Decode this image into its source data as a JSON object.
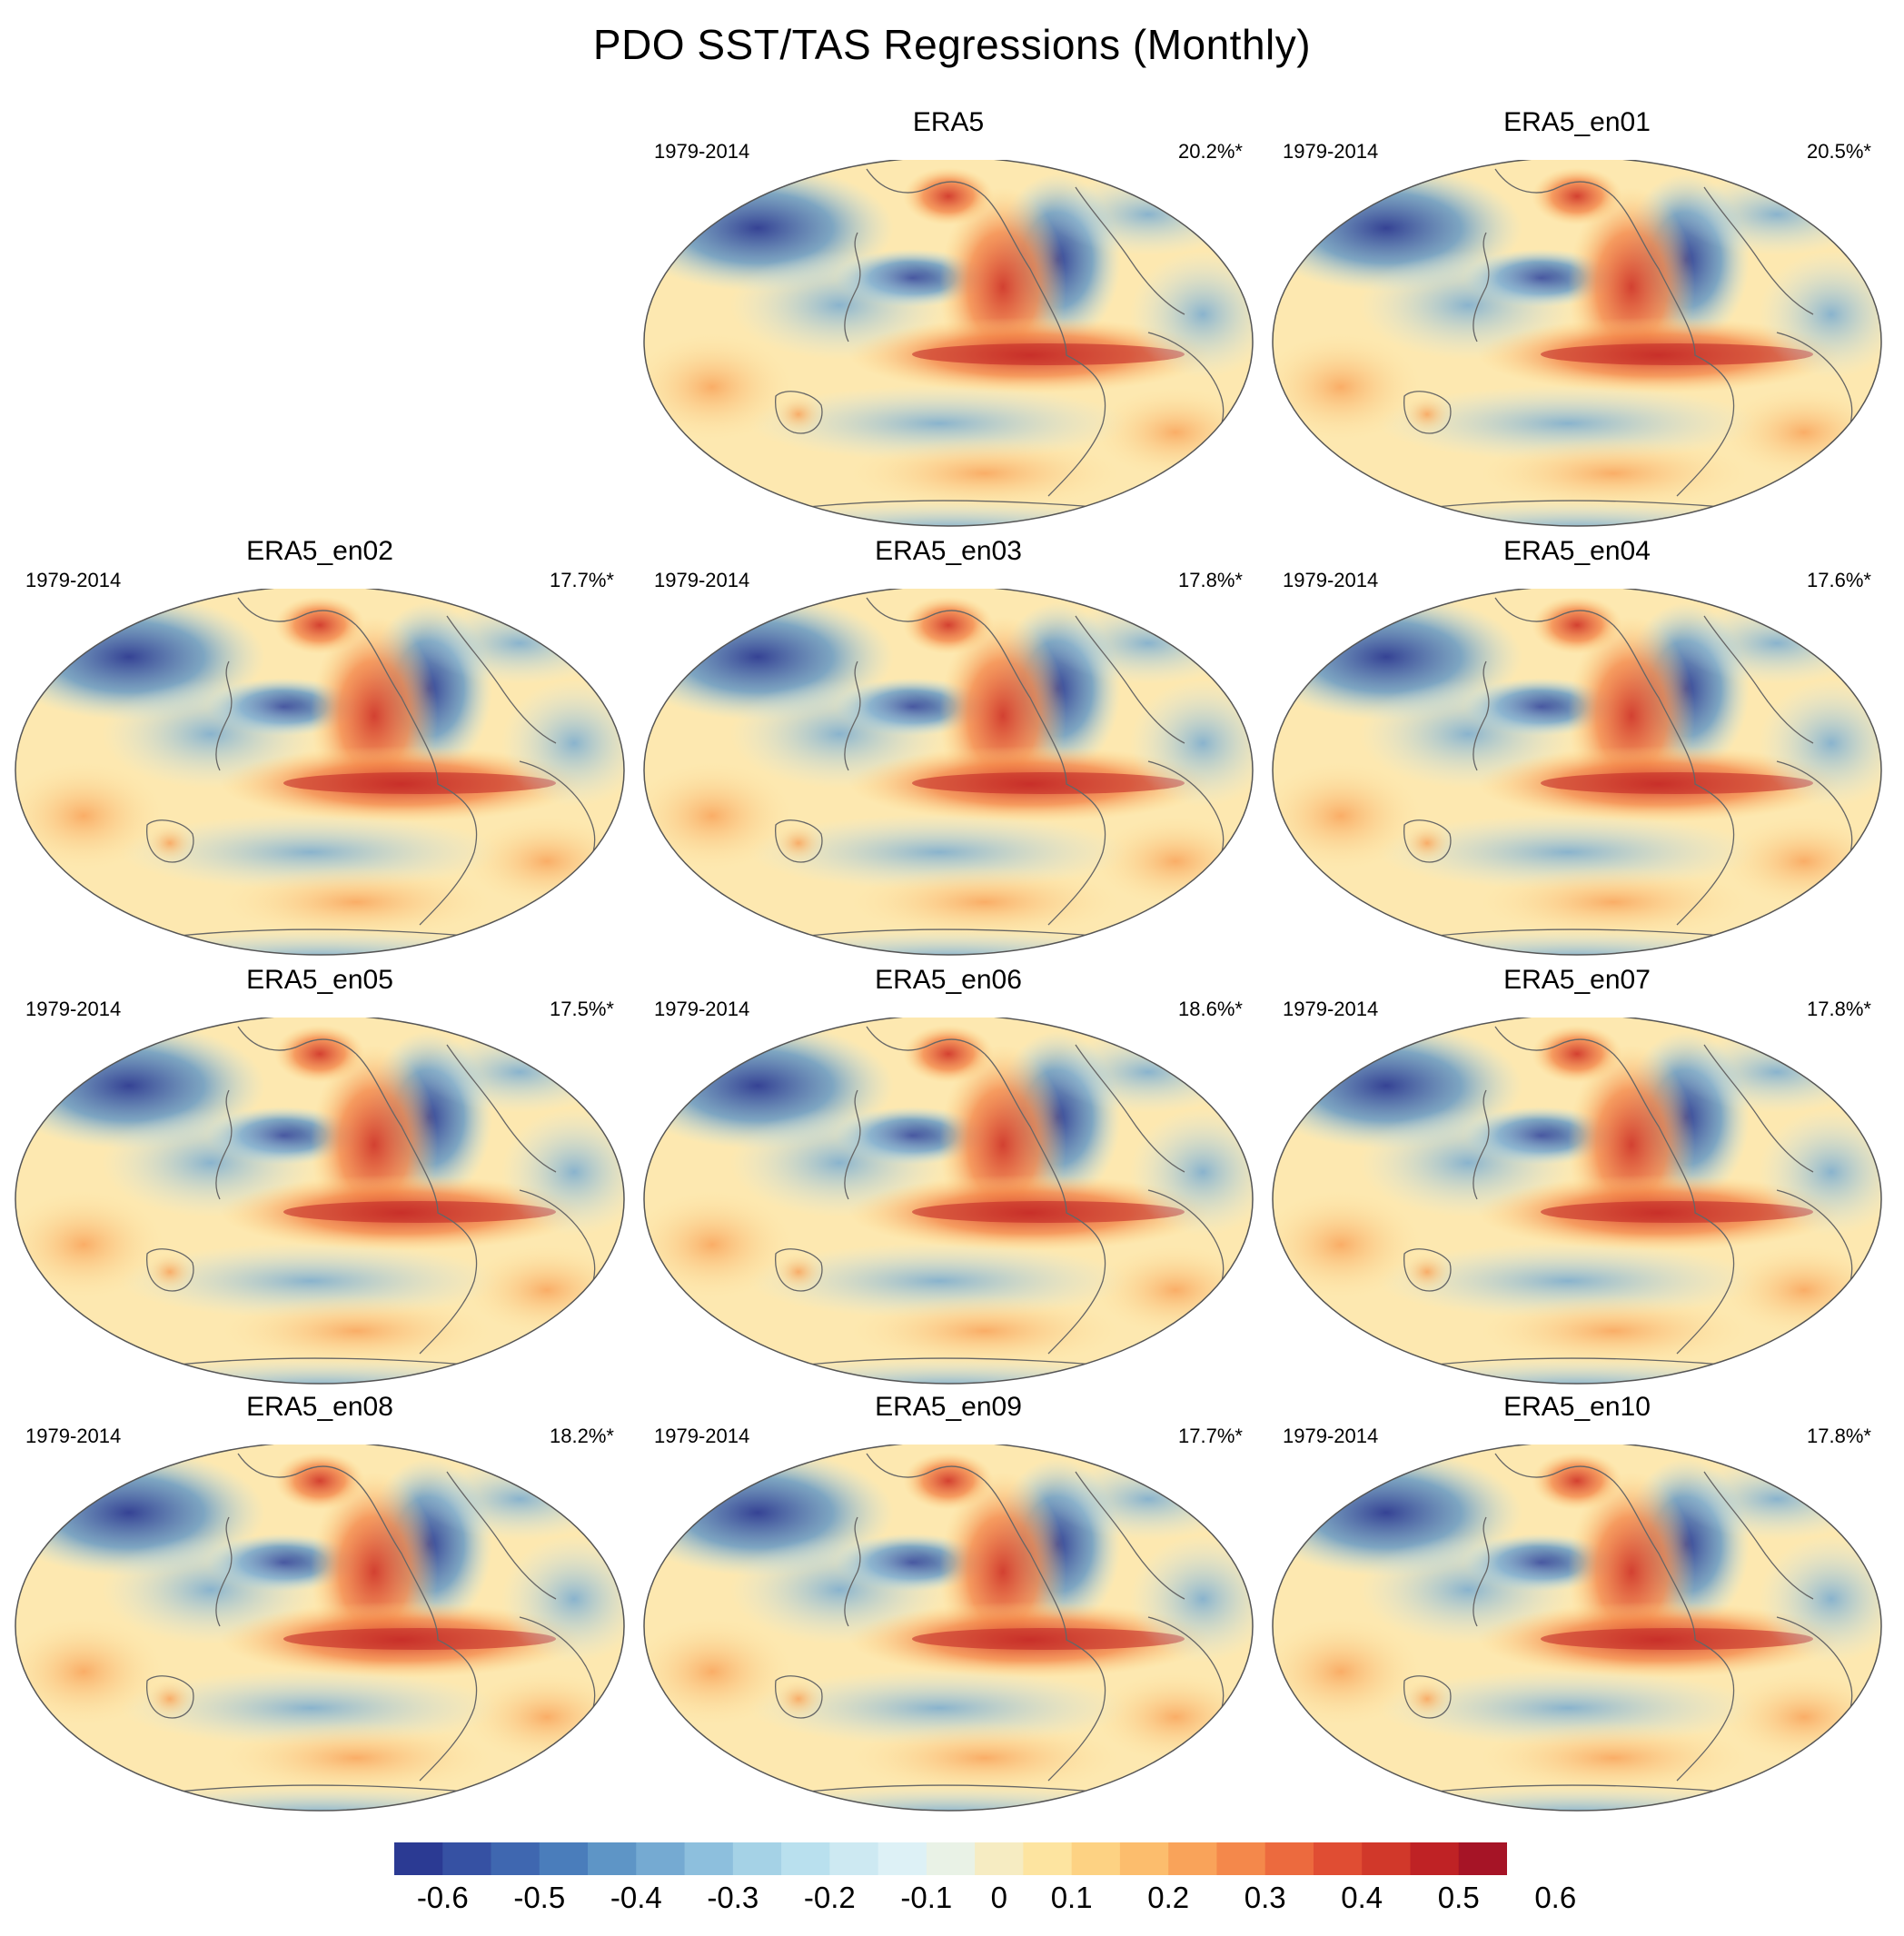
{
  "title": "PDO SST/TAS Regressions (Monthly)",
  "panels": [
    {
      "name": "ERA5",
      "period": "1979-2014",
      "percent": "20.2%*"
    },
    {
      "name": "ERA5_en01",
      "period": "1979-2014",
      "percent": "20.5%*"
    },
    {
      "name": "ERA5_en02",
      "period": "1979-2014",
      "percent": "17.7%*"
    },
    {
      "name": "ERA5_en03",
      "period": "1979-2014",
      "percent": "17.8%*"
    },
    {
      "name": "ERA5_en04",
      "period": "1979-2014",
      "percent": "17.6%*"
    },
    {
      "name": "ERA5_en05",
      "period": "1979-2014",
      "percent": "17.5%*"
    },
    {
      "name": "ERA5_en06",
      "period": "1979-2014",
      "percent": "18.6%*"
    },
    {
      "name": "ERA5_en07",
      "period": "1979-2014",
      "percent": "17.8%*"
    },
    {
      "name": "ERA5_en08",
      "period": "1979-2014",
      "percent": "18.2%*"
    },
    {
      "name": "ERA5_en09",
      "period": "1979-2014",
      "percent": "17.7%*"
    },
    {
      "name": "ERA5_en10",
      "period": "1979-2014",
      "percent": "17.8%*"
    }
  ],
  "colorbar": {
    "colors": [
      "#2b3a93",
      "#3651a3",
      "#3f67b0",
      "#4a7dbb",
      "#5e95c6",
      "#75aad2",
      "#8dbfdd",
      "#a5d2e6",
      "#b9e0ee",
      "#cde9f2",
      "#ddf1f6",
      "#e9f2e6",
      "#f6ecc2",
      "#fde4a0",
      "#fdd283",
      "#fcbd6d",
      "#f9a35a",
      "#f4884b",
      "#ec6a3e",
      "#e04d33",
      "#d1382a",
      "#bf2225",
      "#a61426"
    ],
    "labels": [
      "-0.6",
      "-0.5",
      "-0.4",
      "-0.3",
      "-0.2",
      "-0.1",
      "0",
      "0.1",
      "0.2",
      "0.3",
      "0.4",
      "0.5",
      "0.6"
    ]
  }
}
